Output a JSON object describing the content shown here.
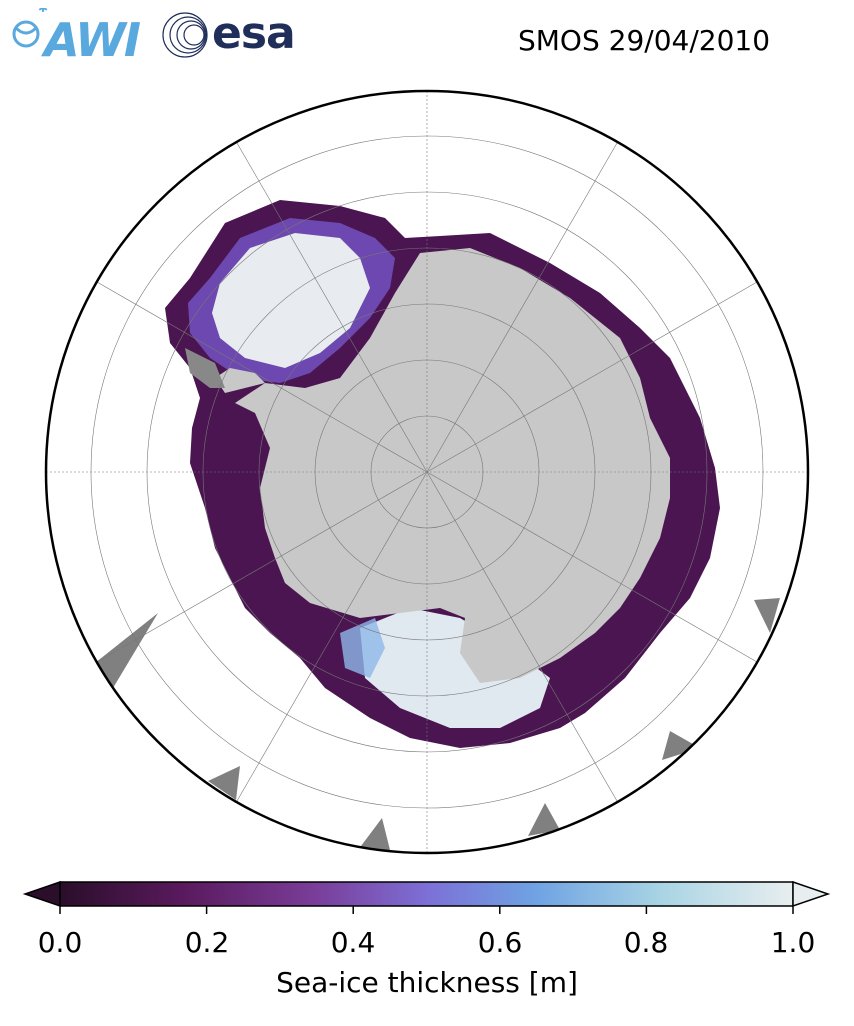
{
  "header": {
    "logo_awi": "AWI",
    "logo_esa": "esa",
    "title": "SMOS 29/04/2010"
  },
  "map": {
    "projection": "south-polar-stereographic",
    "land_color": "#c8c8c8",
    "ocean_color": "#ffffff",
    "graticule": true
  },
  "colorbar": {
    "label": "Sea-ice thickness [m]",
    "min": 0.0,
    "max": 1.0,
    "ticks": [
      "0.0",
      "0.2",
      "0.4",
      "0.6",
      "0.8",
      "1.0"
    ],
    "colors": [
      "#2a0e2a",
      "#5a1a5e",
      "#7a3e9a",
      "#7d6fd6",
      "#6fa3e3",
      "#a9d4e4",
      "#e8eeef"
    ],
    "extend": "both"
  }
}
